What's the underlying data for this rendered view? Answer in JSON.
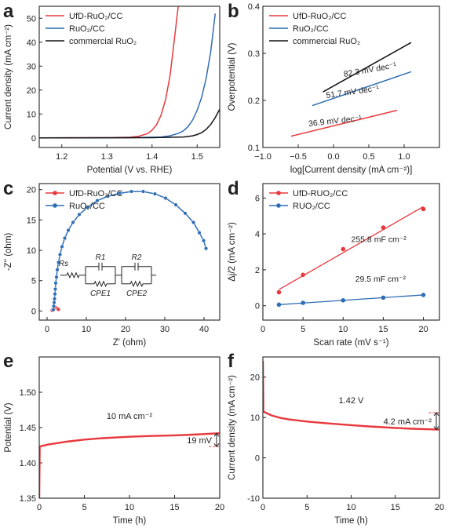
{
  "chart_data": [
    {
      "panel": "a",
      "type": "line",
      "xlabel": "Potential (V vs. RHE)",
      "ylabel": "Current density (mA cm⁻²)",
      "xlim": [
        1.15,
        1.55
      ],
      "ylim": [
        -4,
        55
      ],
      "xticks": [
        1.2,
        1.3,
        1.4,
        1.5
      ],
      "xtick_labels": [
        "1.2",
        "1.3",
        "1.4",
        "1.5"
      ],
      "yticks": [
        0,
        10,
        20,
        30,
        40,
        50
      ],
      "ytick_labels": [
        "0",
        "10",
        "20",
        "30",
        "40",
        "50"
      ],
      "legend_position": "top-left",
      "series": [
        {
          "name": "UfD-RuO₂/CC",
          "color": "#e8383d",
          "x": [
            1.15,
            1.3,
            1.35,
            1.37,
            1.39,
            1.4,
            1.41,
            1.42,
            1.43,
            1.44,
            1.45,
            1.458
          ],
          "y": [
            0,
            0.1,
            0.3,
            0.7,
            1.8,
            3.2,
            5.5,
            9.5,
            16,
            26,
            42,
            55
          ]
        },
        {
          "name": "RuO₂/CC",
          "color": "#2f6db5",
          "x": [
            1.15,
            1.35,
            1.42,
            1.44,
            1.46,
            1.47,
            1.48,
            1.49,
            1.5,
            1.51,
            1.52,
            1.53,
            1.54
          ],
          "y": [
            0,
            0.1,
            0.4,
            0.9,
            2,
            3,
            4.8,
            7.5,
            11.5,
            17,
            25,
            36,
            52
          ]
        },
        {
          "name": "commercial RuO₂",
          "color": "#111111",
          "x": [
            1.15,
            1.4,
            1.47,
            1.49,
            1.5,
            1.51,
            1.52,
            1.53,
            1.54,
            1.55
          ],
          "y": [
            0,
            0.1,
            0.4,
            0.9,
            1.4,
            2.2,
            3.6,
            5.6,
            8.5,
            12
          ]
        }
      ]
    },
    {
      "panel": "b",
      "type": "line",
      "xlabel": "log[Current density (mA cm⁻²)]",
      "ylabel": "Overpotential (V)",
      "xlim": [
        -1.0,
        1.5
      ],
      "ylim": [
        0.1,
        0.4
      ],
      "xticks": [
        -1.0,
        -0.5,
        0.0,
        0.5,
        1.0
      ],
      "xtick_labels": [
        "−1.0",
        "−0.5",
        "0.0",
        "0.5",
        "1.0"
      ],
      "yticks": [
        0.1,
        0.2,
        0.3,
        0.4
      ],
      "ytick_labels": [
        "0.1",
        "0.2",
        "0.3",
        "0.4"
      ],
      "legend_position": "top-left",
      "series": [
        {
          "name": "UfD-RuO₂/CC",
          "color": "#e8383d",
          "x": [
            -0.6,
            0.9
          ],
          "y": [
            0.124,
            0.179
          ],
          "annotation": "36.9 mV dec⁻¹"
        },
        {
          "name": "RuO₂/CC",
          "color": "#2f6db5",
          "x": [
            -0.3,
            1.1
          ],
          "y": [
            0.189,
            0.261
          ],
          "annotation": "51.7 mV dec⁻¹"
        },
        {
          "name": "commercial RuO₂",
          "color": "#111111",
          "x": [
            -0.15,
            1.1
          ],
          "y": [
            0.218,
            0.323
          ],
          "annotation": "82.3 mV dec⁻¹"
        }
      ]
    },
    {
      "panel": "c",
      "type": "scatter",
      "xlabel": "Z' (ohm)",
      "ylabel": "-Z'' (ohm)",
      "xlim": [
        -2,
        44
      ],
      "ylim": [
        -1.5,
        21
      ],
      "xticks": [
        0,
        10,
        20,
        30,
        40
      ],
      "xtick_labels": [
        "0",
        "10",
        "20",
        "30",
        "40"
      ],
      "yticks": [
        0,
        5,
        10,
        15,
        20
      ],
      "ytick_labels": [
        "0",
        "5",
        "10",
        "15",
        "20"
      ],
      "legend_position": "top-left",
      "circuit_labels": [
        "Rs",
        "R1",
        "R2",
        "CPE1",
        "CPE2"
      ],
      "series": [
        {
          "name": "UfD-RuO₂/CC",
          "color": "#e8383d",
          "x": [
            1.3,
            1.5,
            1.7,
            1.9,
            2.1,
            2.3,
            2.5,
            2.7,
            2.9
          ],
          "y": [
            0.1,
            0.3,
            0.45,
            0.55,
            0.6,
            0.55,
            0.45,
            0.35,
            0.25
          ]
        },
        {
          "name": "RuO₂/CC",
          "color": "#2f6db5",
          "x": [
            1.6,
            1.7,
            1.8,
            1.9,
            2.0,
            2.1,
            2.2,
            2.4,
            2.6,
            2.9,
            3.3,
            3.8,
            4.5,
            5.4,
            6.6,
            8.2,
            10.3,
            12.8,
            15.5,
            18.5,
            21.5,
            24.5,
            27.5,
            30.2,
            32.8,
            35.2,
            37.3,
            38.8,
            39.9,
            40.5
          ],
          "y": [
            0.2,
            0.8,
            1.4,
            2.0,
            2.8,
            3.6,
            4.6,
            5.6,
            6.8,
            8.0,
            9.3,
            10.6,
            12.0,
            13.3,
            14.6,
            15.9,
            17.1,
            18.2,
            18.9,
            19.4,
            19.7,
            19.7,
            19.3,
            18.6,
            17.5,
            16.1,
            14.6,
            12.9,
            11.6,
            10.3
          ]
        }
      ]
    },
    {
      "panel": "d",
      "type": "scatter",
      "xlabel": "Scan rate (mV s⁻¹)",
      "ylabel": "Δj/2 (mA cm⁻²)",
      "xlim": [
        0,
        22
      ],
      "ylim": [
        -0.8,
        6.8
      ],
      "xticks": [
        0,
        5,
        10,
        15,
        20
      ],
      "xtick_labels": [
        "0",
        "5",
        "10",
        "15",
        "20"
      ],
      "yticks": [
        0,
        2,
        4,
        6
      ],
      "ytick_labels": [
        "0",
        "2",
        "4",
        "6"
      ],
      "legend_position": "top-left",
      "series": [
        {
          "name": "UfD-RUO₂/CC",
          "color": "#e8383d",
          "x": [
            2,
            5,
            10,
            15,
            20
          ],
          "y": [
            0.75,
            1.72,
            3.15,
            4.35,
            5.38
          ],
          "fit": [
            0.9,
            5.52
          ],
          "annotation": "255.8 mF cm⁻²"
        },
        {
          "name": "RUO₂/CC",
          "color": "#2f6db5",
          "x": [
            2,
            5,
            10,
            15,
            20
          ],
          "y": [
            0.06,
            0.16,
            0.3,
            0.45,
            0.6
          ],
          "fit": [
            0.06,
            0.6
          ],
          "annotation": "29.5 mF cm⁻²"
        }
      ]
    },
    {
      "panel": "e",
      "type": "line",
      "xlabel": "Time (h)",
      "ylabel": "Potential (V)",
      "xlim": [
        0,
        20
      ],
      "ylim": [
        1.35,
        1.55
      ],
      "xticks": [
        0,
        5,
        10,
        15,
        20
      ],
      "xtick_labels": [
        "0",
        "5",
        "10",
        "15",
        "20"
      ],
      "yticks": [
        1.35,
        1.4,
        1.45,
        1.5
      ],
      "ytick_labels": [
        "1.35",
        "1.40",
        "1.45",
        "1.50"
      ],
      "annotations": [
        "10 mA cm⁻²",
        "19 mV"
      ],
      "series": [
        {
          "name": "",
          "color": "#e8383d",
          "x": [
            0,
            0.05,
            0.3,
            1,
            2,
            3,
            5,
            7,
            10,
            12,
            15,
            17,
            20
          ],
          "y": [
            1.35,
            1.423,
            1.424,
            1.426,
            1.428,
            1.43,
            1.433,
            1.435,
            1.437,
            1.438,
            1.439,
            1.44,
            1.442
          ]
        }
      ]
    },
    {
      "panel": "f",
      "type": "line",
      "xlabel": "Time (h)",
      "ylabel": "Current density (mA cm⁻²)",
      "xlim": [
        0,
        20
      ],
      "ylim": [
        -10,
        25
      ],
      "xticks": [
        0,
        5,
        10,
        15,
        20
      ],
      "xtick_labels": [
        "0",
        "5",
        "10",
        "15",
        "20"
      ],
      "yticks": [
        -10,
        0,
        10,
        20
      ],
      "ytick_labels": [
        "-10",
        "0",
        "10",
        "20"
      ],
      "annotations": [
        "1.42 V",
        "4.2 mA cm⁻²"
      ],
      "series": [
        {
          "name": "",
          "color": "#e8383d",
          "x": [
            0,
            0.05,
            0.5,
            1,
            2,
            3,
            5,
            7,
            10,
            12,
            15,
            17,
            20
          ],
          "y": [
            24,
            11.5,
            11.0,
            10.5,
            9.9,
            9.5,
            9.0,
            8.6,
            8.1,
            7.8,
            7.4,
            7.2,
            7.0
          ]
        }
      ]
    }
  ]
}
